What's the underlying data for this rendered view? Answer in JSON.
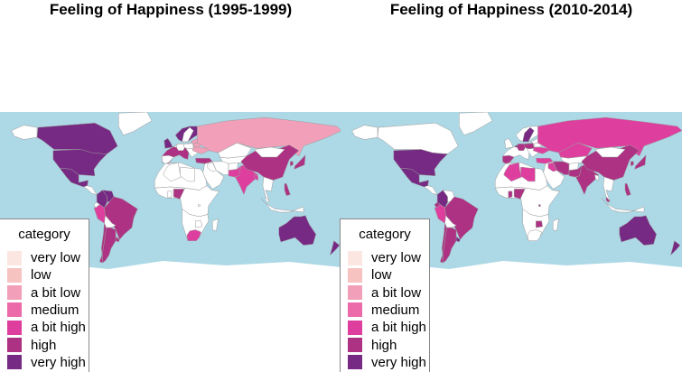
{
  "panels": [
    {
      "title": "Feeling of Happiness (1995-1999)"
    },
    {
      "title": "Feeling of Happiness (2010-2014)"
    }
  ],
  "legend": {
    "title": "category",
    "items": [
      {
        "label": "very low",
        "color": "#fbe6e1"
      },
      {
        "label": "low",
        "color": "#f6c3c1"
      },
      {
        "label": "a bit low",
        "color": "#f2a0ba"
      },
      {
        "label": "medium",
        "color": "#ec6aaa"
      },
      {
        "label": "a bit high",
        "color": "#de3f9f"
      },
      {
        "label": "high",
        "color": "#ad3284"
      },
      {
        "label": "very high",
        "color": "#762a83"
      }
    ]
  },
  "colors": {
    "ocean": "#add8e6",
    "land_no_data": "#ffffff",
    "borders": "#9a9a9a"
  },
  "chart_data": [
    {
      "type": "choropleth",
      "title": "Feeling of Happiness (1995-1999)",
      "legend_title": "category",
      "regions": [
        {
          "region": "United States",
          "category": "very high"
        },
        {
          "region": "Canada",
          "category": "very high"
        },
        {
          "region": "Mexico",
          "category": "very high"
        },
        {
          "region": "Colombia",
          "category": "very high"
        },
        {
          "region": "Venezuela",
          "category": "very high"
        },
        {
          "region": "Peru",
          "category": "a bit high"
        },
        {
          "region": "Chile",
          "category": "high"
        },
        {
          "region": "Argentina",
          "category": "high"
        },
        {
          "region": "Uruguay",
          "category": "high"
        },
        {
          "region": "Brazil",
          "category": "high"
        },
        {
          "region": "Russia",
          "category": "a bit low"
        },
        {
          "region": "Ukraine",
          "category": "a bit low"
        },
        {
          "region": "Belarus",
          "category": "a bit low"
        },
        {
          "region": "Baltic states",
          "category": "a bit low"
        },
        {
          "region": "Scandinavia",
          "category": "very high"
        },
        {
          "region": "United Kingdom",
          "category": "very high"
        },
        {
          "region": "Western Europe",
          "category": "high"
        },
        {
          "region": "China",
          "category": "high"
        },
        {
          "region": "Japan",
          "category": "high"
        },
        {
          "region": "South Korea",
          "category": "high"
        },
        {
          "region": "India",
          "category": "a bit high"
        },
        {
          "region": "Bangladesh",
          "category": "a bit high"
        },
        {
          "region": "Pakistan",
          "category": "a bit high"
        },
        {
          "region": "Turkey",
          "category": "high"
        },
        {
          "region": "Philippines",
          "category": "high"
        },
        {
          "region": "Nigeria",
          "category": "high"
        },
        {
          "region": "South Africa",
          "category": "a bit high"
        },
        {
          "region": "Australia",
          "category": "very high"
        },
        {
          "region": "New Zealand",
          "category": "very high"
        }
      ]
    },
    {
      "type": "choropleth",
      "title": "Feeling of Happiness (2010-2014)",
      "legend_title": "category",
      "regions": [
        {
          "region": "United States",
          "category": "very high"
        },
        {
          "region": "Mexico",
          "category": "very high"
        },
        {
          "region": "Colombia",
          "category": "very high"
        },
        {
          "region": "Ecuador",
          "category": "high"
        },
        {
          "region": "Peru",
          "category": "a bit high"
        },
        {
          "region": "Chile",
          "category": "high"
        },
        {
          "region": "Argentina",
          "category": "high"
        },
        {
          "region": "Uruguay",
          "category": "very high"
        },
        {
          "region": "Brazil",
          "category": "high"
        },
        {
          "region": "Russia",
          "category": "a bit high"
        },
        {
          "region": "Ukraine",
          "category": "a bit high"
        },
        {
          "region": "Kazakhstan",
          "category": "a bit high"
        },
        {
          "region": "Sweden",
          "category": "very high"
        },
        {
          "region": "Netherlands",
          "category": "very high"
        },
        {
          "region": "Germany",
          "category": "high"
        },
        {
          "region": "Spain",
          "category": "high"
        },
        {
          "region": "Poland",
          "category": "high"
        },
        {
          "region": "Turkey",
          "category": "a bit high"
        },
        {
          "region": "Iran",
          "category": "high"
        },
        {
          "region": "Iraq",
          "category": "a bit high"
        },
        {
          "region": "Algeria",
          "category": "a bit high"
        },
        {
          "region": "Libya",
          "category": "a bit high"
        },
        {
          "region": "Nigeria",
          "category": "high"
        },
        {
          "region": "Ghana",
          "category": "high"
        },
        {
          "region": "Rwanda",
          "category": "high"
        },
        {
          "region": "Zimbabwe",
          "category": "high"
        },
        {
          "region": "India",
          "category": "high"
        },
        {
          "region": "Pakistan",
          "category": "high"
        },
        {
          "region": "China",
          "category": "high"
        },
        {
          "region": "Japan",
          "category": "high"
        },
        {
          "region": "South Korea",
          "category": "high"
        },
        {
          "region": "Malaysia",
          "category": "high"
        },
        {
          "region": "Philippines",
          "category": "high"
        },
        {
          "region": "Australia",
          "category": "very high"
        },
        {
          "region": "New Zealand",
          "category": "very high"
        }
      ]
    }
  ]
}
